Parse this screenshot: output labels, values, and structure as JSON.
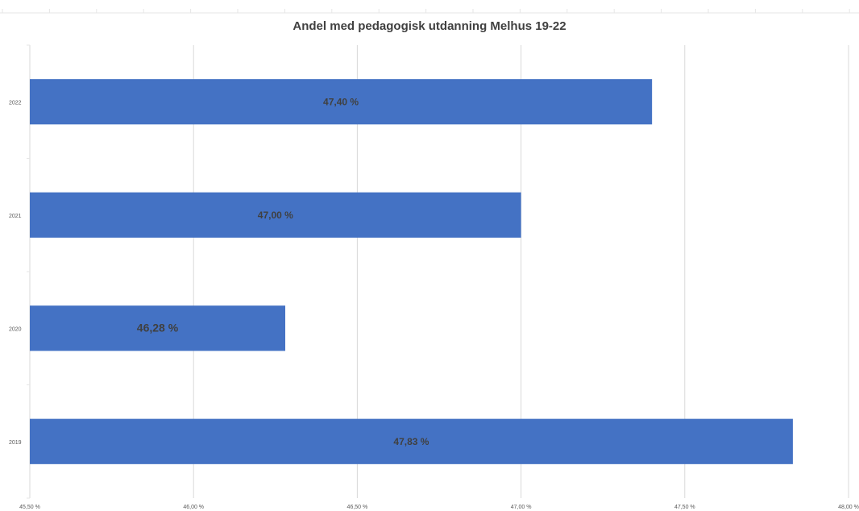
{
  "chart_data": {
    "type": "bar",
    "orientation": "horizontal",
    "title": "Andel med pedagogisk utdanning Melhus 19-22",
    "xlabel": "",
    "ylabel": "",
    "categories": [
      "2022",
      "2021",
      "2020",
      "2019"
    ],
    "values": [
      47.4,
      47.0,
      46.28,
      47.83
    ],
    "data_labels": [
      "47,40 %",
      "47,00 %",
      "46,28 %",
      "47,83 %"
    ],
    "xlim": [
      45.5,
      48.0
    ],
    "x_ticks": [
      45.5,
      46.0,
      46.5,
      47.0,
      47.5,
      48.0
    ],
    "x_tick_labels": [
      "45,50 %",
      "46,00 %",
      "46,50 %",
      "47,00 %",
      "47,50 %",
      "48,00 %"
    ],
    "grid": true,
    "legend": "none",
    "bar_color": "#4472c4",
    "gridline_color": "#d9d9d9"
  }
}
